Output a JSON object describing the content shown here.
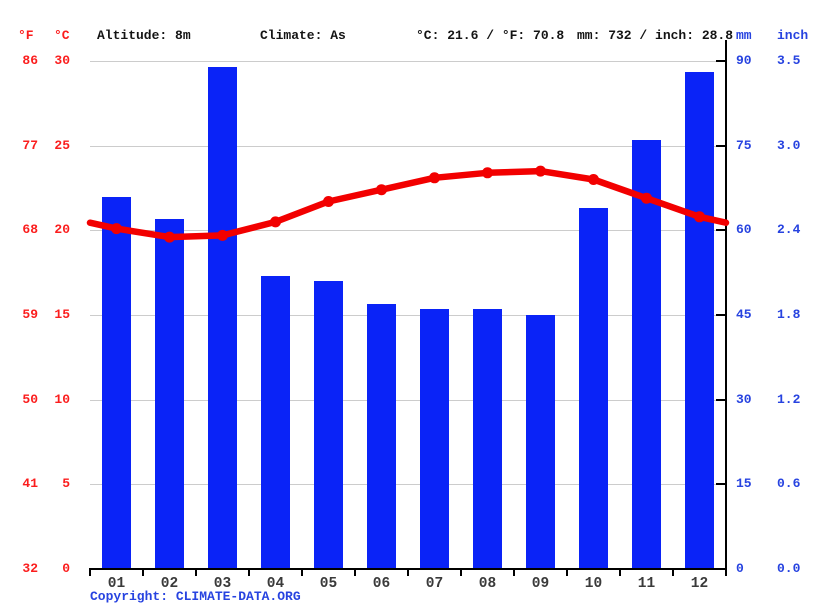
{
  "header": {
    "f_unit": "°F",
    "c_unit": "°C",
    "altitude": "Altitude: 8m",
    "climate": "Climate: As",
    "temperature_summary": "°C: 21.6 / °F: 70.8",
    "precipitation_summary": "mm: 732 / inch: 28.8",
    "mm_unit": "mm",
    "inch_unit": "inch"
  },
  "axes": {
    "fahrenheit_ticks": [
      "86",
      "77",
      "68",
      "59",
      "50",
      "41",
      "32"
    ],
    "celsius_ticks": [
      "30",
      "25",
      "20",
      "15",
      "10",
      "5",
      "0"
    ],
    "mm_ticks": [
      "90",
      "75",
      "60",
      "45",
      "30",
      "15",
      "0"
    ],
    "inch_ticks": [
      "3.5",
      "3.0",
      "2.4",
      "1.8",
      "1.2",
      "0.6",
      "0.0"
    ]
  },
  "chart_data": {
    "type": "bar",
    "subtype": "climate bar+line combo",
    "categories": [
      "01",
      "02",
      "03",
      "04",
      "05",
      "06",
      "07",
      "08",
      "09",
      "10",
      "11",
      "12"
    ],
    "series": [
      {
        "name": "Precipitation (mm)",
        "type": "bar",
        "axis": "right",
        "values": [
          66,
          62,
          89,
          52,
          51,
          47,
          46,
          46,
          45,
          64,
          76,
          88
        ]
      },
      {
        "name": "Temperature (°C)",
        "type": "line",
        "axis": "left",
        "values": [
          20.1,
          19.6,
          19.7,
          20.5,
          21.7,
          22.4,
          23.1,
          23.4,
          23.5,
          23.0,
          21.9,
          20.8
        ]
      }
    ],
    "left_axis": {
      "unit": "°C",
      "min": 0,
      "max": 30,
      "step": 5,
      "secondary_unit": "°F",
      "secondary_ticks": [
        86,
        77,
        68,
        59,
        50,
        41,
        32
      ]
    },
    "right_axis": {
      "unit": "mm",
      "min": 0,
      "max": 90,
      "step": 15,
      "secondary_unit": "inch",
      "secondary_ticks": [
        3.5,
        3.0,
        2.4,
        1.8,
        1.2,
        0.6,
        0.0
      ]
    },
    "grid": true,
    "legend_position": "none",
    "line_wraps_to_plot_edges": true
  },
  "footer": {
    "copyright": "Copyright: CLIMATE-DATA.ORG"
  },
  "colors": {
    "bar": "#0a23f7",
    "line": "#f20000",
    "red_text": "#fb1d1d",
    "blue_text": "#2743e0",
    "grid": "#cccccc",
    "axis": "#000000",
    "month_text": "#3a3a3a",
    "header_text": "#141414",
    "background": "#ffffff"
  }
}
